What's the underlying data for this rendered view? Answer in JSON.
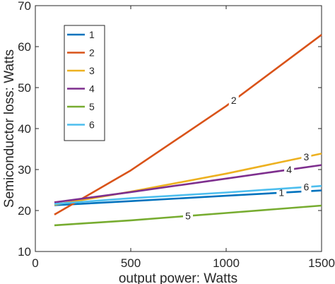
{
  "chart_data": {
    "type": "line",
    "title": "",
    "xlabel": "output power: Watts",
    "ylabel": "Semiconductor loss: Watts",
    "xlim": [
      0,
      1500
    ],
    "ylim": [
      10,
      70
    ],
    "xticks": [
      0,
      500,
      1000,
      1500
    ],
    "yticks": [
      10,
      20,
      30,
      40,
      50,
      60,
      70
    ],
    "grid": false,
    "legend_position": "top-left",
    "series": [
      {
        "name": "1",
        "color": "#0072bd",
        "x": [
          100,
          500,
          1000,
          1500
        ],
        "y": [
          21.3,
          22.3,
          23.6,
          24.9
        ],
        "inline_label": "1",
        "label_x": 1290
      },
      {
        "name": "2",
        "color": "#d95319",
        "x": [
          100,
          500,
          1000,
          1500
        ],
        "y": [
          19.0,
          29.8,
          45.5,
          62.9
        ],
        "inline_label": "2",
        "label_x": 1040
      },
      {
        "name": "3",
        "color": "#edb120",
        "x": [
          100,
          500,
          1000,
          1500
        ],
        "y": [
          21.4,
          24.6,
          29.0,
          33.9
        ],
        "inline_label": "3",
        "label_x": 1420
      },
      {
        "name": "4",
        "color": "#7e2f8e",
        "x": [
          100,
          500,
          1000,
          1500
        ],
        "y": [
          22.0,
          24.5,
          27.8,
          31.1
        ],
        "inline_label": "4",
        "label_x": 1330
      },
      {
        "name": "5",
        "color": "#77ac30",
        "x": [
          100,
          500,
          1000,
          1500
        ],
        "y": [
          16.4,
          17.6,
          19.4,
          21.2
        ],
        "inline_label": "5",
        "label_x": 800
      },
      {
        "name": "6",
        "color": "#4dbeee",
        "x": [
          100,
          500,
          1000,
          1500
        ],
        "y": [
          21.6,
          23.0,
          24.4,
          26.0
        ],
        "inline_label": "6",
        "label_x": 1420
      }
    ]
  }
}
